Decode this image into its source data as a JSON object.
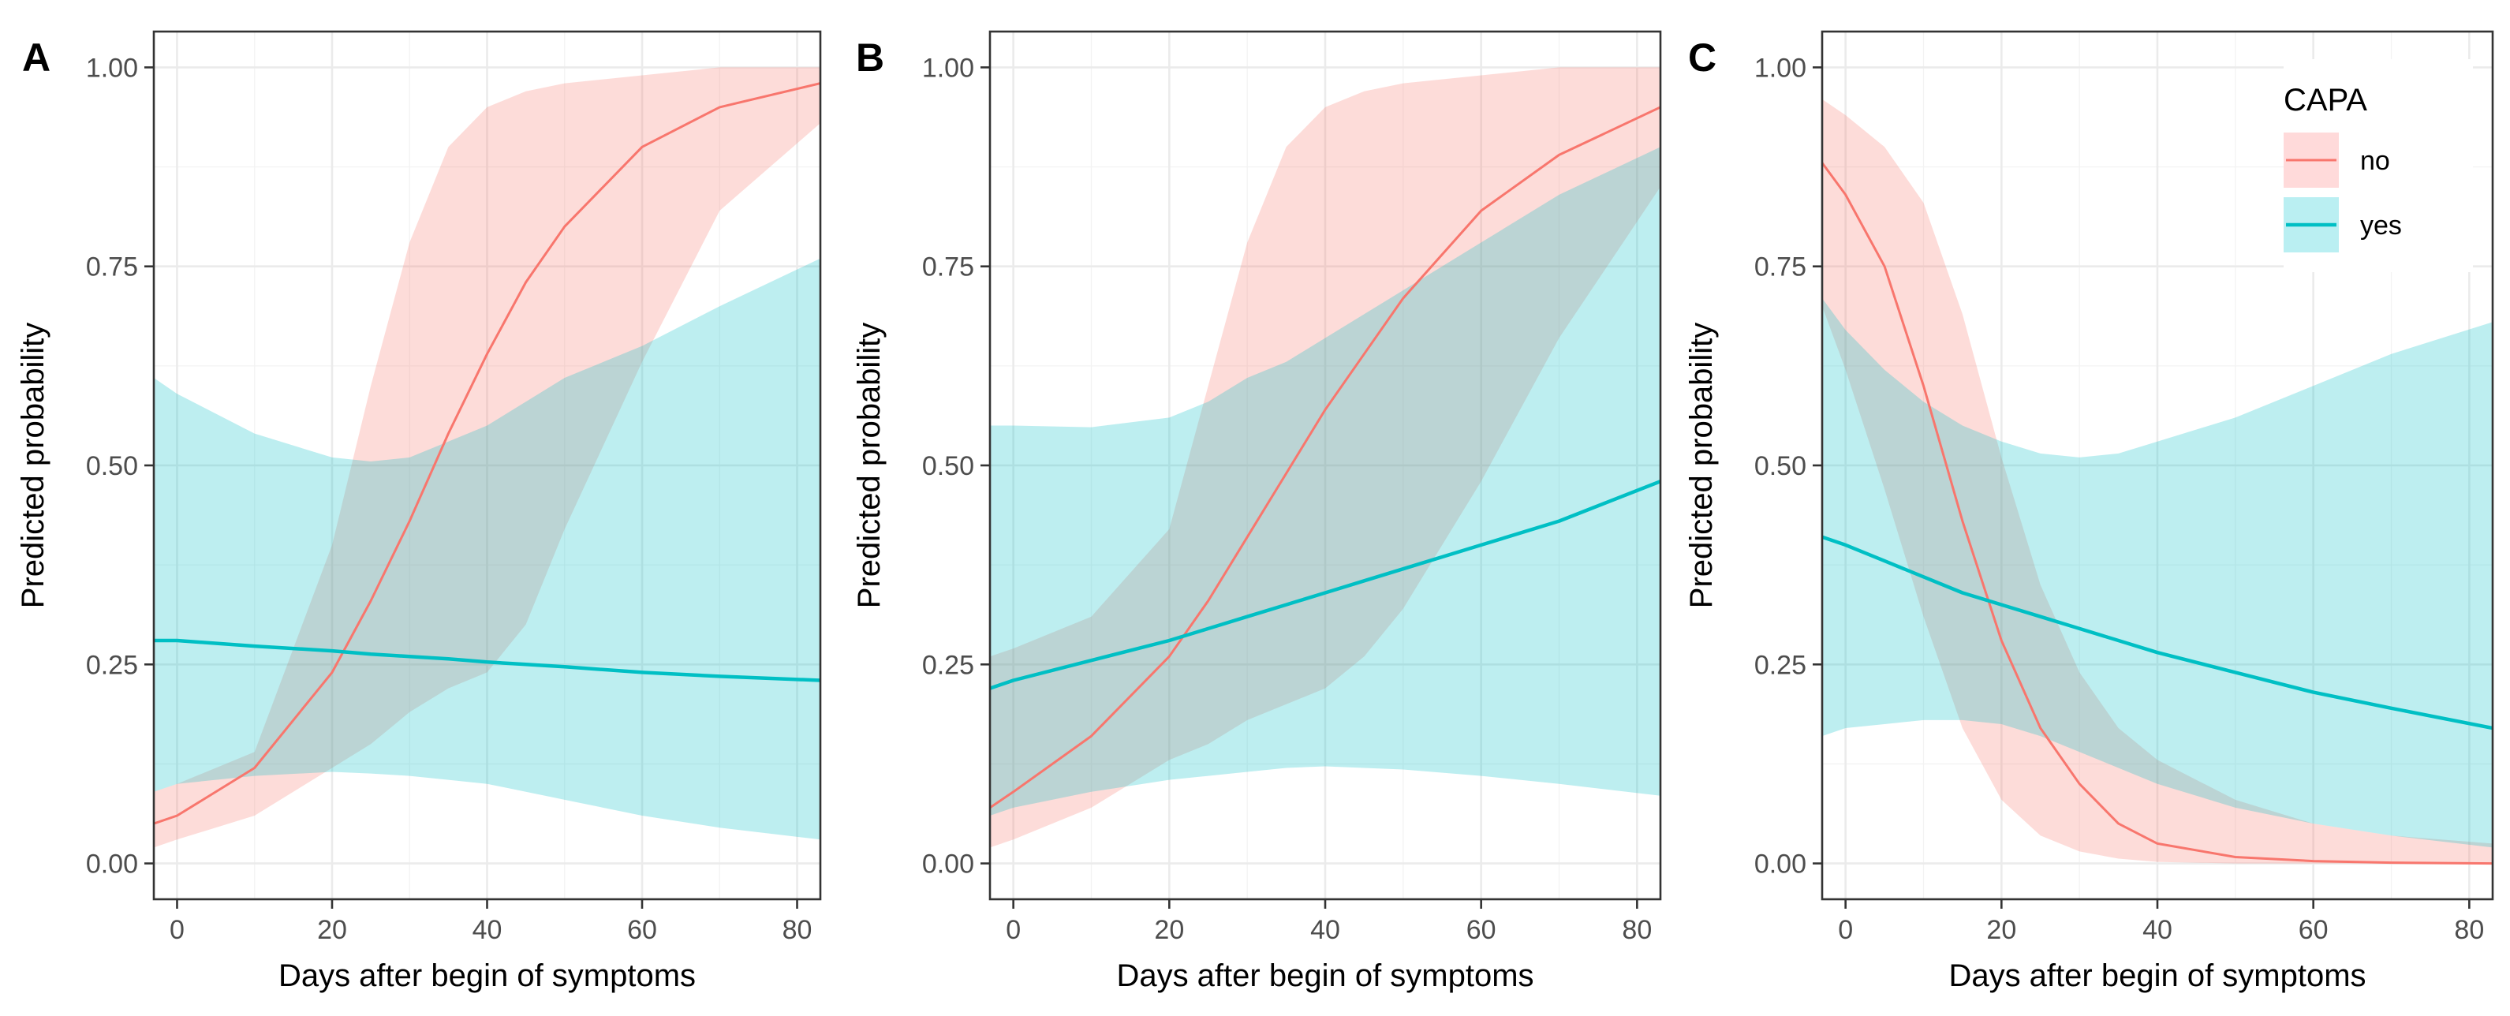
{
  "figure": {
    "xlabel": "Days after begin of symptoms",
    "ylabel": "Predicted probability"
  },
  "legend": {
    "title": "CAPA",
    "entries": [
      {
        "label": "no",
        "color": "#F8766D",
        "fill": "#FFDADA"
      },
      {
        "label": "yes",
        "color": "#00BFC4",
        "fill": "#BAEFF2"
      }
    ]
  },
  "chart_data": [
    {
      "type": "line",
      "panel": "A",
      "xlabel": "Days after begin of symptoms",
      "ylabel": "Predicted probability",
      "xlim": [
        -3,
        83
      ],
      "ylim": [
        0,
        1
      ],
      "x_ticks": [
        0,
        20,
        40,
        60,
        80
      ],
      "y_ticks": [
        "0.00",
        "0.25",
        "0.50",
        "0.75",
        "1.00"
      ],
      "x": [
        -3,
        0,
        10,
        20,
        25,
        30,
        35,
        40,
        45,
        50,
        60,
        70,
        83
      ],
      "series": [
        {
          "name": "no",
          "color": "#F8766D",
          "fill": "#FFDADA",
          "values": [
            0.05,
            0.06,
            0.12,
            0.24,
            0.33,
            0.43,
            0.54,
            0.64,
            0.73,
            0.8,
            0.9,
            0.95,
            0.98
          ],
          "lower": [
            0.02,
            0.03,
            0.06,
            0.12,
            0.15,
            0.19,
            0.22,
            0.24,
            0.3,
            0.42,
            0.63,
            0.82,
            0.93
          ],
          "upper": [
            0.09,
            0.1,
            0.14,
            0.4,
            0.6,
            0.78,
            0.9,
            0.95,
            0.97,
            0.98,
            0.99,
            1.0,
            1.0
          ]
        },
        {
          "name": "yes",
          "color": "#00BFC4",
          "fill": "#BAEFF2",
          "values": [
            0.28,
            0.28,
            0.273,
            0.267,
            0.263,
            0.26,
            0.257,
            0.253,
            0.25,
            0.247,
            0.24,
            0.235,
            0.23
          ],
          "lower": [
            0.09,
            0.1,
            0.11,
            0.115,
            0.113,
            0.11,
            0.105,
            0.1,
            0.09,
            0.08,
            0.06,
            0.045,
            0.03
          ],
          "upper": [
            0.61,
            0.59,
            0.54,
            0.51,
            0.505,
            0.51,
            0.53,
            0.55,
            0.58,
            0.61,
            0.65,
            0.7,
            0.76
          ]
        }
      ]
    },
    {
      "type": "line",
      "panel": "B",
      "xlabel": "Days after begin of symptoms",
      "ylabel": "Predicted probability",
      "xlim": [
        -3,
        83
      ],
      "ylim": [
        0,
        1
      ],
      "x_ticks": [
        0,
        20,
        40,
        60,
        80
      ],
      "y_ticks": [
        "0.00",
        "0.25",
        "0.50",
        "0.75",
        "1.00"
      ],
      "x": [
        -3,
        0,
        10,
        20,
        25,
        30,
        35,
        40,
        45,
        50,
        60,
        70,
        83
      ],
      "series": [
        {
          "name": "no",
          "color": "#F8766D",
          "fill": "#FFDADA",
          "values": [
            0.07,
            0.09,
            0.16,
            0.26,
            0.33,
            0.41,
            0.49,
            0.57,
            0.64,
            0.71,
            0.82,
            0.89,
            0.95
          ],
          "lower": [
            0.02,
            0.03,
            0.07,
            0.13,
            0.15,
            0.18,
            0.2,
            0.22,
            0.26,
            0.32,
            0.48,
            0.66,
            0.85
          ],
          "upper": [
            0.26,
            0.27,
            0.31,
            0.42,
            0.6,
            0.78,
            0.9,
            0.95,
            0.97,
            0.98,
            0.99,
            1.0,
            1.0
          ]
        },
        {
          "name": "yes",
          "color": "#00BFC4",
          "fill": "#BAEFF2",
          "values": [
            0.22,
            0.23,
            0.255,
            0.28,
            0.295,
            0.31,
            0.325,
            0.34,
            0.355,
            0.37,
            0.4,
            0.43,
            0.48
          ],
          "lower": [
            0.06,
            0.07,
            0.09,
            0.105,
            0.11,
            0.115,
            0.12,
            0.122,
            0.12,
            0.118,
            0.11,
            0.1,
            0.085
          ],
          "upper": [
            0.55,
            0.55,
            0.548,
            0.56,
            0.58,
            0.61,
            0.63,
            0.66,
            0.69,
            0.72,
            0.78,
            0.84,
            0.9
          ]
        }
      ]
    },
    {
      "type": "line",
      "panel": "C",
      "xlabel": "Days after begin of symptoms",
      "ylabel": "Predicted probability",
      "xlim": [
        -3,
        83
      ],
      "ylim": [
        0,
        1
      ],
      "x_ticks": [
        0,
        20,
        40,
        60,
        80
      ],
      "y_ticks": [
        "0.00",
        "0.25",
        "0.50",
        "0.75",
        "1.00"
      ],
      "x": [
        -3,
        0,
        5,
        10,
        15,
        20,
        25,
        30,
        35,
        40,
        50,
        60,
        70,
        83
      ],
      "series": [
        {
          "name": "no",
          "color": "#F8766D",
          "fill": "#FFDADA",
          "values": [
            0.88,
            0.84,
            0.75,
            0.6,
            0.43,
            0.28,
            0.17,
            0.1,
            0.05,
            0.025,
            0.008,
            0.003,
            0.001,
            0.0
          ],
          "lower": [
            0.7,
            0.62,
            0.47,
            0.31,
            0.17,
            0.08,
            0.035,
            0.015,
            0.006,
            0.002,
            0.0,
            0.0,
            0.0,
            0.0
          ],
          "upper": [
            0.96,
            0.94,
            0.9,
            0.83,
            0.69,
            0.51,
            0.35,
            0.24,
            0.17,
            0.13,
            0.08,
            0.05,
            0.035,
            0.025
          ]
        },
        {
          "name": "yes",
          "color": "#00BFC4",
          "fill": "#BAEFF2",
          "values": [
            0.41,
            0.4,
            0.38,
            0.36,
            0.34,
            0.325,
            0.31,
            0.295,
            0.28,
            0.265,
            0.24,
            0.215,
            0.195,
            0.17
          ],
          "lower": [
            0.16,
            0.17,
            0.175,
            0.18,
            0.18,
            0.175,
            0.16,
            0.14,
            0.12,
            0.1,
            0.07,
            0.05,
            0.035,
            0.02
          ],
          "upper": [
            0.71,
            0.67,
            0.62,
            0.58,
            0.55,
            0.53,
            0.515,
            0.51,
            0.515,
            0.53,
            0.56,
            0.6,
            0.64,
            0.68
          ]
        }
      ]
    }
  ]
}
